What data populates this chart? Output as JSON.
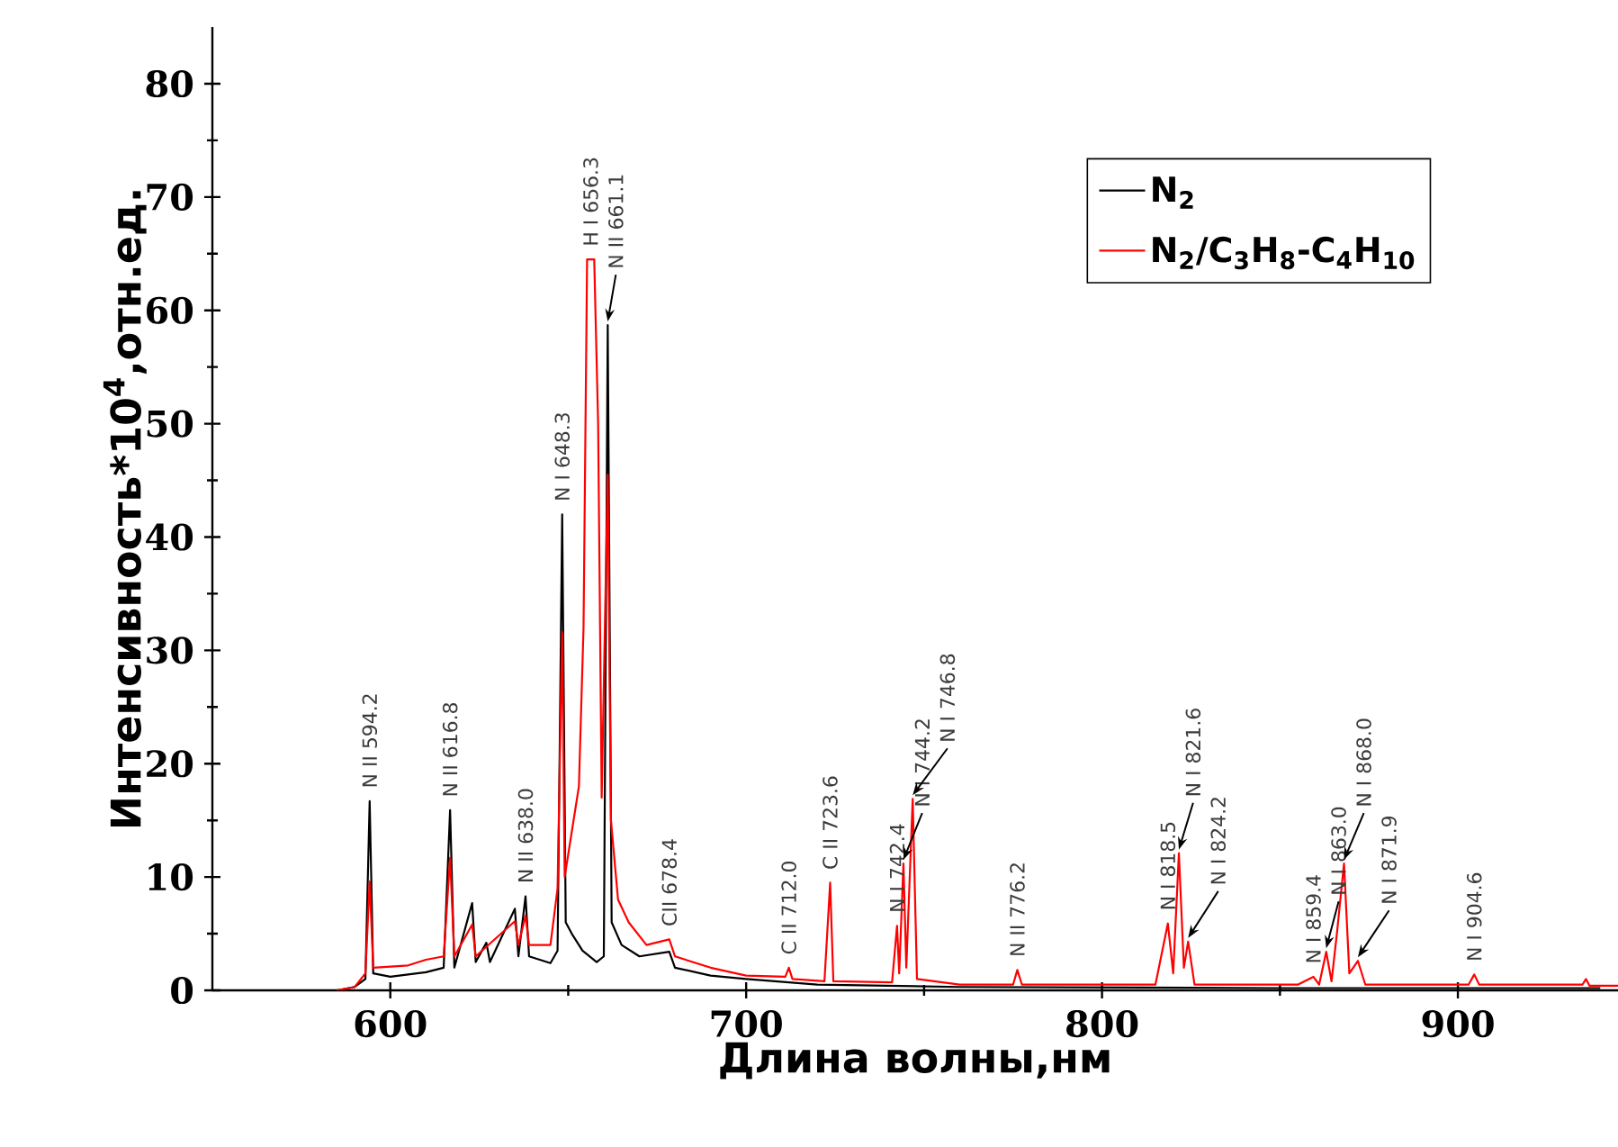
{
  "chart_data": {
    "type": "line",
    "xlabel": "Длина волны,нм",
    "ylabel": "Интенсивность*10$^{4}$,отн.ед.",
    "xlim": [
      550,
      945
    ],
    "ylim": [
      0,
      85
    ],
    "xticks": [
      600,
      700,
      800,
      900
    ],
    "yticks": [
      0,
      10,
      20,
      30,
      40,
      50,
      60,
      70,
      80
    ],
    "legend": "top right",
    "series": [
      {
        "name": "N$_{2}$",
        "color": "#000000",
        "x": [
          585,
          590,
          593,
          594.2,
          595.2,
          600,
          610,
          615,
          616.8,
          618,
          623,
          624,
          627,
          628,
          635,
          636,
          638,
          639,
          645,
          647,
          648.3,
          649.3,
          651,
          654,
          658,
          660,
          661.1,
          662.2,
          665,
          670,
          678.4,
          680,
          690,
          700,
          720,
          760,
          850,
          940
        ],
        "values": [
          0,
          0.3,
          1,
          16.7,
          1.5,
          1.2,
          1.6,
          2,
          15.9,
          2,
          7.7,
          2.5,
          4.2,
          2.5,
          7.2,
          3,
          8.3,
          3,
          2.4,
          3.5,
          42,
          6,
          5,
          3.5,
          2.5,
          3,
          58.7,
          6,
          4,
          3,
          3.4,
          2,
          1.3,
          1,
          0.5,
          0.3,
          0.2,
          0.2
        ]
      },
      {
        "name": "N$_{2}$/C$_{3}$H$_{8}$-C$_{4}$H$_{10}$",
        "color": "#ff0000",
        "x": [
          585,
          590,
          593,
          594.2,
          595.2,
          605,
          610,
          615,
          616.8,
          618,
          623,
          624,
          635,
          636,
          638,
          639,
          645,
          647,
          648.3,
          649,
          651,
          653,
          654.3,
          655.3,
          656.3,
          657.3,
          658.4,
          659.4,
          661.1,
          662,
          664,
          667,
          672,
          678.4,
          680,
          690,
          700,
          711,
          712,
          713,
          722,
          723.6,
          724.5,
          741,
          742.4,
          743,
          744.2,
          745,
          746.8,
          748,
          760,
          775,
          776.2,
          777.5,
          815,
          818.5,
          820,
          821.6,
          823,
          824.2,
          826,
          855,
          859.4,
          861,
          863,
          864.5,
          866,
          868,
          869.5,
          871.9,
          874,
          903,
          904.6,
          906,
          935,
          936,
          937,
          945
        ],
        "values": [
          0,
          0.3,
          1.5,
          9.6,
          2,
          2.2,
          2.7,
          3,
          11.7,
          3,
          5.8,
          3,
          6.1,
          4,
          6.6,
          4,
          4,
          9,
          31.6,
          10,
          14,
          18,
          32,
          64.5,
          64.5,
          64.5,
          50,
          17,
          45.5,
          15,
          8,
          6,
          4,
          4.5,
          3,
          2,
          1.3,
          1.2,
          2,
          1,
          0.8,
          9.5,
          0.8,
          0.7,
          5.7,
          1.5,
          11.2,
          2,
          16.9,
          1,
          0.5,
          0.5,
          1.8,
          0.5,
          0.5,
          5.9,
          1.5,
          12.1,
          2,
          4.3,
          0.5,
          0.5,
          1.2,
          0.5,
          3.4,
          0.8,
          5,
          11.2,
          1.5,
          2.6,
          0.5,
          0.5,
          1.4,
          0.5,
          0.5,
          1,
          0.4,
          0.4
        ]
      }
    ],
    "annotations": [
      {
        "text": "N II 594.2",
        "x": 594.2,
        "y": 16.7
      },
      {
        "text": "N II 616.8",
        "x": 616.8,
        "y": 15.9
      },
      {
        "text": "N II 638.0",
        "x": 638,
        "y": 8.3
      },
      {
        "text": "N I 648.3",
        "x": 648.3,
        "y": 42
      },
      {
        "text": "H I 656.3",
        "x": 656.3,
        "y": 64.5
      },
      {
        "text": "N II 661.1",
        "x": 661.1,
        "y": 58.7
      },
      {
        "text": "CII 678.4",
        "x": 678.4,
        "y": 4.5
      },
      {
        "text": "C II 712.0",
        "x": 712,
        "y": 2
      },
      {
        "text": "C II 723.6",
        "x": 723.6,
        "y": 9.5
      },
      {
        "text": "N I 742.4",
        "x": 742.4,
        "y": 5.7
      },
      {
        "text": "N I 744.2",
        "x": 744.2,
        "y": 11.2
      },
      {
        "text": "N I 746.8",
        "x": 746.8,
        "y": 16.9
      },
      {
        "text": "N II 776.2",
        "x": 776.2,
        "y": 1.8
      },
      {
        "text": "N I 818.5",
        "x": 818.5,
        "y": 5.9
      },
      {
        "text": "N I 821.6",
        "x": 821.6,
        "y": 12.1
      },
      {
        "text": "N I 824.2",
        "x": 824.2,
        "y": 4.3
      },
      {
        "text": "N I 859.4",
        "x": 859.4,
        "y": 1.2
      },
      {
        "text": "N I 863.0",
        "x": 863,
        "y": 3.4
      },
      {
        "text": "N I 868.0",
        "x": 868,
        "y": 11.2
      },
      {
        "text": "N I 871.9",
        "x": 871.9,
        "y": 2.6
      },
      {
        "text": "N I 904.6",
        "x": 904.6,
        "y": 1.4
      }
    ]
  }
}
